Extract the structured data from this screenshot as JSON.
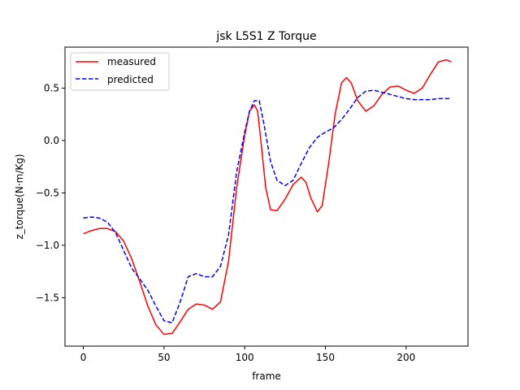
{
  "chart_data": {
    "type": "line",
    "title": "jsk L5S1 Z Torque",
    "xlabel": "frame",
    "ylabel": "z_torque(N·m/Kg)",
    "xlim": [
      -11.35,
      238.35
    ],
    "ylim": [
      -1.962,
      0.891
    ],
    "xticks": [
      0,
      50,
      100,
      150,
      200
    ],
    "xtick_labels": [
      "0",
      "50",
      "100",
      "150",
      "200"
    ],
    "yticks": [
      -1.5,
      -1.0,
      -0.5,
      0.0,
      0.5
    ],
    "ytick_labels": [
      "−1.5",
      "−1.0",
      "−0.5",
      "0.0",
      "0.5"
    ],
    "grid": false,
    "legend": {
      "position": "top-left",
      "entries": [
        "measured",
        "predicted"
      ]
    },
    "series": [
      {
        "name": "measured",
        "color": "#ff0000",
        "style": "solid",
        "x": [
          0,
          5,
          10,
          15,
          20,
          25,
          30,
          35,
          40,
          45,
          50,
          55,
          60,
          65,
          70,
          75,
          80,
          85,
          90,
          95,
          100,
          103,
          106,
          108,
          110,
          113,
          116,
          120,
          125,
          130,
          135,
          138,
          141,
          145,
          148,
          152,
          156,
          160,
          163,
          166,
          170,
          175,
          180,
          185,
          190,
          195,
          200,
          205,
          210,
          215,
          220,
          225,
          228
        ],
        "y": [
          -0.89,
          -0.86,
          -0.84,
          -0.84,
          -0.87,
          -0.96,
          -1.13,
          -1.35,
          -1.58,
          -1.76,
          -1.85,
          -1.84,
          -1.73,
          -1.61,
          -1.56,
          -1.57,
          -1.61,
          -1.54,
          -1.15,
          -0.45,
          0.05,
          0.28,
          0.34,
          0.28,
          0.0,
          -0.45,
          -0.66,
          -0.67,
          -0.56,
          -0.42,
          -0.35,
          -0.4,
          -0.55,
          -0.68,
          -0.62,
          -0.22,
          0.25,
          0.55,
          0.6,
          0.55,
          0.38,
          0.28,
          0.33,
          0.44,
          0.51,
          0.52,
          0.48,
          0.45,
          0.5,
          0.63,
          0.75,
          0.77,
          0.75
        ]
      },
      {
        "name": "predicted",
        "color": "#0000ff",
        "style": "dashed",
        "x": [
          0,
          5,
          10,
          15,
          20,
          25,
          30,
          35,
          40,
          45,
          50,
          55,
          60,
          65,
          70,
          75,
          80,
          85,
          90,
          95,
          100,
          103,
          106,
          109,
          112,
          116,
          120,
          125,
          130,
          135,
          140,
          145,
          150,
          155,
          160,
          165,
          170,
          175,
          180,
          185,
          190,
          195,
          200,
          205,
          210,
          215,
          220,
          225,
          228
        ],
        "y": [
          -0.74,
          -0.73,
          -0.74,
          -0.78,
          -0.88,
          -1.05,
          -1.22,
          -1.32,
          -1.43,
          -1.58,
          -1.72,
          -1.74,
          -1.54,
          -1.3,
          -1.27,
          -1.3,
          -1.3,
          -1.2,
          -0.9,
          -0.3,
          0.08,
          0.28,
          0.38,
          0.38,
          0.15,
          -0.2,
          -0.38,
          -0.43,
          -0.38,
          -0.22,
          -0.07,
          0.03,
          0.08,
          0.12,
          0.2,
          0.3,
          0.41,
          0.47,
          0.48,
          0.46,
          0.44,
          0.42,
          0.4,
          0.39,
          0.39,
          0.39,
          0.4,
          0.4,
          0.4
        ]
      }
    ]
  }
}
